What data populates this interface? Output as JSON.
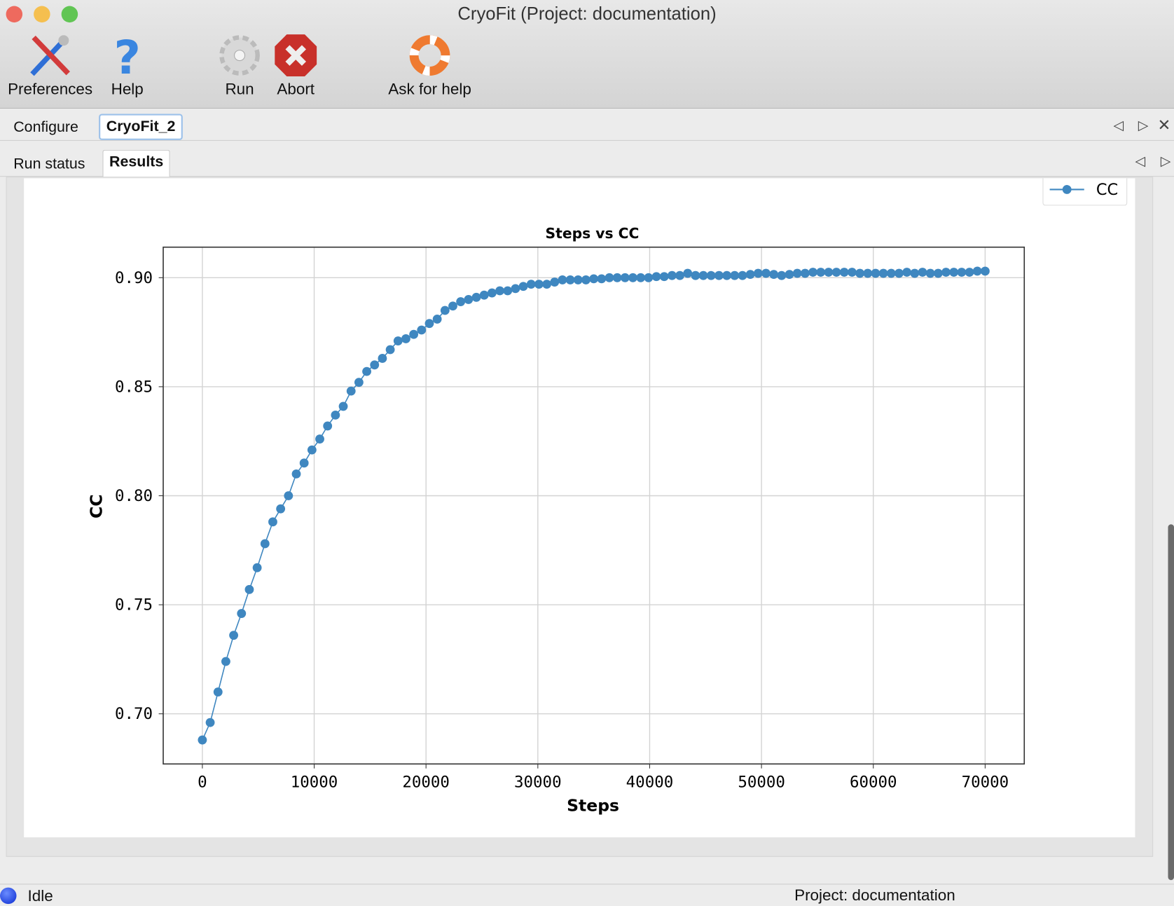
{
  "window": {
    "title": "CryoFit (Project: documentation)"
  },
  "toolbar": {
    "preferences": "Preferences",
    "help": "Help",
    "run": "Run",
    "abort": "Abort",
    "ask_for_help": "Ask for help"
  },
  "tabs_top": [
    {
      "label": "Configure"
    },
    {
      "label": "CryoFit_2"
    }
  ],
  "tabs_sub": [
    {
      "label": "Run status"
    },
    {
      "label": "Results"
    }
  ],
  "status": {
    "state": "Idle",
    "project": "Project: documentation"
  },
  "chart_data": {
    "type": "line",
    "title": "Steps vs CC",
    "xlabel": "Steps",
    "ylabel": "CC",
    "xlim": [
      -3500,
      73500
    ],
    "ylim": [
      0.677,
      0.914
    ],
    "xticks": [
      0,
      10000,
      20000,
      30000,
      40000,
      50000,
      60000,
      70000
    ],
    "yticks": [
      0.7,
      0.75,
      0.8,
      0.85,
      0.9
    ],
    "ytick_labels": [
      "0.70",
      "0.75",
      "0.80",
      "0.85",
      "0.90"
    ],
    "grid": true,
    "legend": "top-right",
    "marker": "circle",
    "color": "#3f87c0",
    "series": [
      {
        "name": "CC",
        "x_start": 0,
        "x_step": 700,
        "values": [
          0.688,
          0.696,
          0.71,
          0.724,
          0.736,
          0.746,
          0.757,
          0.767,
          0.778,
          0.788,
          0.794,
          0.8,
          0.81,
          0.815,
          0.821,
          0.826,
          0.832,
          0.837,
          0.841,
          0.848,
          0.852,
          0.857,
          0.86,
          0.863,
          0.867,
          0.871,
          0.872,
          0.874,
          0.876,
          0.879,
          0.881,
          0.885,
          0.887,
          0.889,
          0.89,
          0.891,
          0.892,
          0.893,
          0.894,
          0.894,
          0.895,
          0.896,
          0.897,
          0.897,
          0.897,
          0.898,
          0.899,
          0.899,
          0.899,
          0.899,
          0.8995,
          0.8995,
          0.9,
          0.9,
          0.9,
          0.9,
          0.9,
          0.9,
          0.9005,
          0.9005,
          0.901,
          0.901,
          0.902,
          0.901,
          0.901,
          0.901,
          0.901,
          0.901,
          0.901,
          0.901,
          0.9015,
          0.902,
          0.902,
          0.9015,
          0.901,
          0.9015,
          0.902,
          0.902,
          0.9025,
          0.9025,
          0.9025,
          0.9025,
          0.9025,
          0.9025,
          0.902,
          0.902,
          0.902,
          0.902,
          0.902,
          0.902,
          0.9025,
          0.902,
          0.9025,
          0.902,
          0.902,
          0.9025,
          0.9025,
          0.9025,
          0.9025,
          0.903,
          0.903
        ]
      }
    ]
  }
}
